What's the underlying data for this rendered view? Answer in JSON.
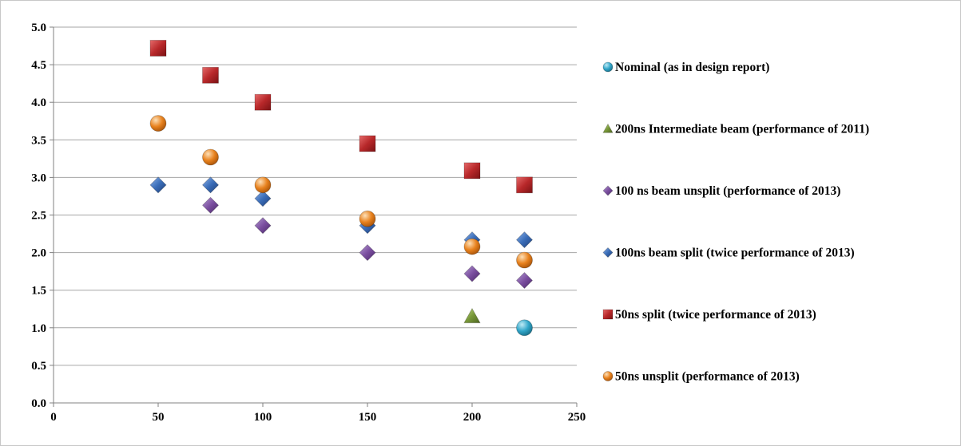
{
  "chart_data": {
    "type": "scatter",
    "title": "",
    "xlabel": "",
    "ylabel": "",
    "xlim": [
      0,
      250
    ],
    "ylim": [
      0,
      5
    ],
    "x_ticks": [
      "0",
      "50",
      "100",
      "150",
      "200",
      "250"
    ],
    "y_ticks": [
      "0.0",
      "0.5",
      "1.0",
      "1.5",
      "2.0",
      "2.5",
      "3.0",
      "3.5",
      "4.0",
      "4.5",
      "5.0"
    ],
    "grid": "horizontal",
    "legend_position": "right",
    "series": [
      {
        "name": "Nominal (as in design report)",
        "marker": "circle",
        "color": "#31a6c9",
        "points": [
          [
            225,
            1.0
          ]
        ]
      },
      {
        "name": "200ns Intermediate beam (performance of 2011)",
        "marker": "triangle",
        "color": "#7a9a3a",
        "points": [
          [
            200,
            1.15
          ]
        ]
      },
      {
        "name": "100 ns beam unsplit (performance of 2013)",
        "marker": "diamond",
        "color": "#7b4fa0",
        "points": [
          [
            75,
            2.63
          ],
          [
            100,
            2.36
          ],
          [
            150,
            2.0
          ],
          [
            200,
            1.72
          ],
          [
            225,
            1.63
          ]
        ]
      },
      {
        "name": "100ns beam split (twice performance of 2013)",
        "marker": "diamond",
        "color": "#3a6db8",
        "points": [
          [
            50,
            2.9
          ],
          [
            75,
            2.9
          ],
          [
            100,
            2.72
          ],
          [
            150,
            2.36
          ],
          [
            200,
            2.17
          ],
          [
            225,
            2.17
          ]
        ]
      },
      {
        "name": "50ns split (twice performance of 2013)",
        "marker": "square",
        "color": "#b8282a",
        "points": [
          [
            50,
            4.72
          ],
          [
            75,
            4.36
          ],
          [
            100,
            4.0
          ],
          [
            150,
            3.45
          ],
          [
            200,
            3.09
          ],
          [
            225,
            2.9
          ]
        ]
      },
      {
        "name": "50ns  unsplit (performance of 2013)",
        "marker": "circle",
        "color": "#e8821e",
        "points": [
          [
            50,
            3.72
          ],
          [
            75,
            3.27
          ],
          [
            100,
            2.9
          ],
          [
            150,
            2.45
          ],
          [
            200,
            2.08
          ],
          [
            225,
            1.9
          ]
        ]
      }
    ]
  }
}
